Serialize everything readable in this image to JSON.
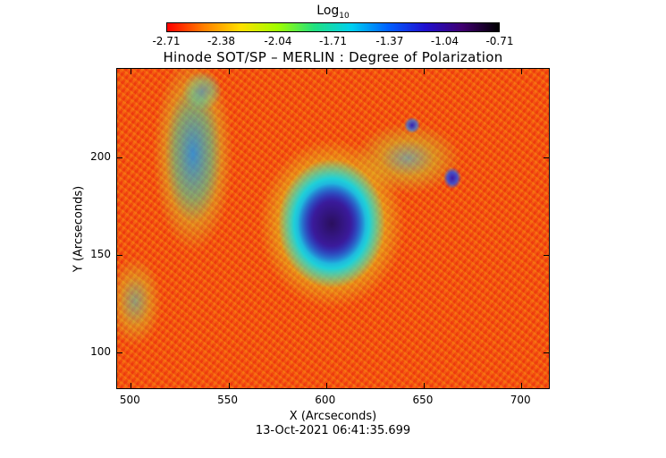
{
  "colorbar": {
    "title": "Log",
    "title_subscript": "10",
    "colors": [
      "#ff0000",
      "#ff8000",
      "#ffe000",
      "#a0ff00",
      "#20e080",
      "#00d0f0",
      "#0060ff",
      "#2010d0",
      "#400070",
      "#000000"
    ],
    "ticks": [
      "-2.71",
      "-2.38",
      "-2.04",
      "-1.71",
      "-1.37",
      "-1.04",
      "-0.71"
    ],
    "min": -2.71,
    "max": -0.71
  },
  "plot": {
    "title": "Hinode SOT/SP – MERLIN : Degree of Polarization",
    "xlabel": "X (Arcseconds)",
    "ylabel": "Y (Arcseconds)",
    "x_ticks": [
      500,
      550,
      600,
      650,
      700
    ],
    "y_ticks": [
      100,
      150,
      200
    ],
    "xlim": [
      493,
      715
    ],
    "ylim": [
      81,
      245
    ],
    "timestamp": "13-Oct-2021 06:41:35.699"
  }
}
